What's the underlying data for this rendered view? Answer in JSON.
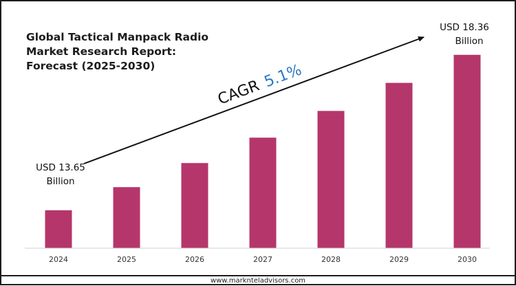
{
  "footer": {
    "website": "www.marknteladvisors.com"
  },
  "chart_data": {
    "type": "bar",
    "title_lines": [
      "Global Tactical Manpack Radio",
      "Market Research Report:",
      "Forecast (2025-2030)"
    ],
    "categories": [
      "2024",
      "2025",
      "2026",
      "2027",
      "2028",
      "2029",
      "2030"
    ],
    "values": [
      13.65,
      14.35,
      15.08,
      15.85,
      16.66,
      17.51,
      18.36
    ],
    "ylim": [
      12.5,
      18.98
    ],
    "bar_color": "#b5366b",
    "grid": false,
    "annotations": {
      "start": {
        "line1": "USD 13.65",
        "line2": "Billion"
      },
      "end": {
        "line1": "USD 18.36",
        "line2": "Billion"
      },
      "cagr_label": "CAGR",
      "cagr_value": "5.1%"
    },
    "accent_colors": {
      "cagr_value": "#2a78c4",
      "arrow": "#111111"
    }
  }
}
